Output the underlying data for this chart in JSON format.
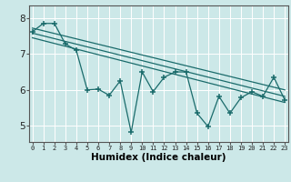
{
  "xlabel": "Humidex (Indice chaleur)",
  "bg_color": "#cce8e8",
  "grid_color": "#ffffff",
  "line_color": "#1a6b6b",
  "x_ticks": [
    0,
    1,
    2,
    3,
    4,
    5,
    6,
    7,
    8,
    9,
    10,
    11,
    12,
    13,
    14,
    15,
    16,
    17,
    18,
    19,
    20,
    21,
    22,
    23
  ],
  "y_ticks": [
    5,
    6,
    7,
    8
  ],
  "xlim": [
    -0.3,
    23.3
  ],
  "ylim": [
    4.55,
    8.35
  ],
  "main_series_x": [
    0,
    1,
    2,
    3,
    4,
    5,
    6,
    7,
    8,
    9,
    10,
    11,
    12,
    13,
    14,
    15,
    16,
    17,
    18,
    19,
    20,
    21,
    22,
    23
  ],
  "main_series_y": [
    7.62,
    7.85,
    7.85,
    7.28,
    7.1,
    6.0,
    6.02,
    5.85,
    6.25,
    4.82,
    6.5,
    5.95,
    6.35,
    6.5,
    6.5,
    5.35,
    4.98,
    5.82,
    5.35,
    5.78,
    5.95,
    5.82,
    6.35,
    5.72
  ],
  "trend1_x": [
    0,
    23
  ],
  "trend1_y": [
    7.72,
    6.0
  ],
  "trend2_x": [
    0,
    23
  ],
  "trend2_y": [
    7.58,
    5.82
  ],
  "trend3_x": [
    0,
    23
  ],
  "trend3_y": [
    7.45,
    5.65
  ]
}
